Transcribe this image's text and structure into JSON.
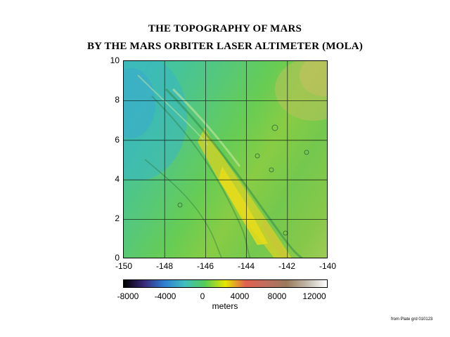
{
  "title_line1": "THE TOPOGRAPHY OF MARS",
  "title_line2": "BY THE MARS ORBITER LASER ALTIMETER (MOLA)",
  "map": {
    "x_ticks": [
      "-150",
      "-148",
      "-146",
      "-144",
      "-142",
      "-140"
    ],
    "y_ticks": [
      "10",
      "8",
      "6",
      "4",
      "2",
      "0"
    ],
    "lon_range": [
      -150,
      -140
    ],
    "lat_range": [
      0,
      10
    ],
    "grid": true
  },
  "colorbar": {
    "labels": [
      "-8000",
      "-4000",
      "0",
      "4000",
      "8000",
      "12000"
    ],
    "unit": "meters",
    "range": [
      -9000,
      13000
    ],
    "colors": [
      "#000000",
      "#3a2a7a",
      "#2f7fd1",
      "#3fbfbf",
      "#55cc55",
      "#e6e600",
      "#e06050",
      "#c07060",
      "#9a7a5a",
      "#c0b8a8",
      "#ffffff"
    ]
  },
  "credit": "from Plate grd 010123"
}
